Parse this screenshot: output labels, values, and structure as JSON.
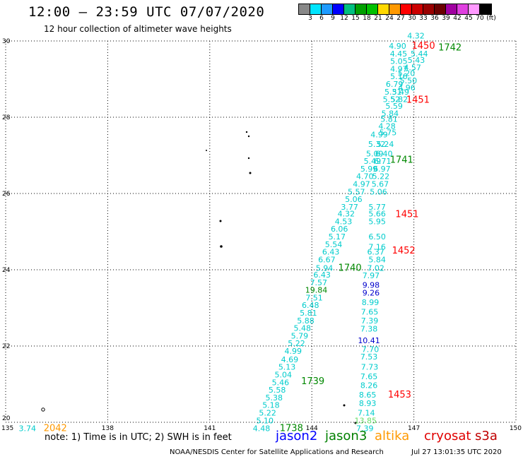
{
  "header": {
    "title": "12:00 – 23:59 UTC 07/07/2020",
    "subtitle": "12 hour collection of altimeter wave heights"
  },
  "color_scale": {
    "colors": [
      "#888888",
      "#00e5ff",
      "#1e9bff",
      "#0000ff",
      "#00c080",
      "#00a000",
      "#00c000",
      "#ffd800",
      "#ff9900",
      "#ff0000",
      "#cc0000",
      "#990000",
      "#6a0000",
      "#a000a0",
      "#e040e0",
      "#ff99ff",
      "#000000"
    ],
    "labels": [
      "3",
      "6",
      "9",
      "12",
      "15",
      "18",
      "21",
      "24",
      "27",
      "30",
      "33",
      "36",
      "39",
      "42",
      "45",
      "70",
      "(ft)"
    ]
  },
  "footer": {
    "note": "note:  1) Time is in UTC;  2) SWH is in feet",
    "legend": [
      {
        "name": "jason2",
        "color": "#0000ff"
      },
      {
        "name": "jason3",
        "color": "#008000"
      },
      {
        "name": "altika",
        "color": "#ff9900"
      },
      {
        "name": "cryosat",
        "color": "#e00000"
      },
      {
        "name": "s3a",
        "color": "#c00000"
      }
    ],
    "credit": "NOAA/NESDIS Center for Satellite Applications and Research",
    "timestamp": "Jul 27 13:01:35 UTC 2020"
  },
  "chart_data": {
    "type": "scatter",
    "xlim": [
      135,
      150
    ],
    "ylim": [
      20,
      30
    ],
    "x_ticks": [
      "135",
      "138",
      "141",
      "144",
      "147",
      "150"
    ],
    "y_ticks": [
      "20",
      "22",
      "24",
      "26",
      "28",
      "30"
    ],
    "grid": true,
    "labels": [
      {
        "x": 147.06,
        "y": 30.14,
        "text": "4.32",
        "color": "#00cccc"
      },
      {
        "x": 146.52,
        "y": 29.87,
        "text": "4.90",
        "color": "#00cccc"
      },
      {
        "x": 147.28,
        "y": 29.87,
        "text": "1450",
        "color": "#ff0000"
      },
      {
        "x": 148.06,
        "y": 29.82,
        "text": "1742",
        "color": "#008800"
      },
      {
        "x": 146.55,
        "y": 29.67,
        "text": "4.45",
        "color": "#00cccc"
      },
      {
        "x": 147.16,
        "y": 29.67,
        "text": "5.44",
        "color": "#00cccc"
      },
      {
        "x": 146.56,
        "y": 29.47,
        "text": "5.05",
        "color": "#00cccc"
      },
      {
        "x": 147.07,
        "y": 29.5,
        "text": "5.43",
        "color": "#00cccc"
      },
      {
        "x": 146.56,
        "y": 29.27,
        "text": "4.97",
        "color": "#00cccc"
      },
      {
        "x": 146.96,
        "y": 29.31,
        "text": "4.57",
        "color": "#00cccc"
      },
      {
        "x": 146.78,
        "y": 29.16,
        "text": "5.20",
        "color": "#00cccc"
      },
      {
        "x": 146.56,
        "y": 29.07,
        "text": "5.16",
        "color": "#00cccc"
      },
      {
        "x": 146.84,
        "y": 28.96,
        "text": "5.50",
        "color": "#00cccc"
      },
      {
        "x": 146.43,
        "y": 28.87,
        "text": "6.79",
        "color": "#00cccc"
      },
      {
        "x": 146.79,
        "y": 28.78,
        "text": "4.96",
        "color": "#00cccc"
      },
      {
        "x": 146.39,
        "y": 28.67,
        "text": "5.31",
        "color": "#00cccc"
      },
      {
        "x": 146.61,
        "y": 28.67,
        "text": "5.49",
        "color": "#00cccc"
      },
      {
        "x": 146.34,
        "y": 28.47,
        "text": "5.52",
        "color": "#00cccc"
      },
      {
        "x": 146.57,
        "y": 28.47,
        "text": "5.82",
        "color": "#00cccc"
      },
      {
        "x": 147.12,
        "y": 28.45,
        "text": "1451",
        "color": "#ff0000"
      },
      {
        "x": 146.42,
        "y": 28.3,
        "text": "5.59",
        "color": "#00cccc"
      },
      {
        "x": 146.3,
        "y": 28.1,
        "text": "5.84",
        "color": "#00cccc"
      },
      {
        "x": 146.27,
        "y": 27.95,
        "text": "5.81",
        "color": "#00cccc"
      },
      {
        "x": 146.21,
        "y": 27.77,
        "text": "4.28",
        "color": "#00cccc"
      },
      {
        "x": 146.24,
        "y": 27.6,
        "text": "5.75",
        "color": "#00cccc"
      },
      {
        "x": 145.98,
        "y": 27.55,
        "text": "4.99",
        "color": "#00cccc"
      },
      {
        "x": 145.91,
        "y": 27.3,
        "text": "5.32",
        "color": "#00cccc"
      },
      {
        "x": 146.16,
        "y": 27.3,
        "text": "5.24",
        "color": "#00cccc"
      },
      {
        "x": 145.85,
        "y": 27.05,
        "text": "5.09",
        "color": "#00cccc"
      },
      {
        "x": 146.12,
        "y": 27.05,
        "text": "6.40",
        "color": "#00cccc"
      },
      {
        "x": 145.78,
        "y": 26.85,
        "text": "5.49",
        "color": "#00cccc"
      },
      {
        "x": 146.08,
        "y": 26.85,
        "text": "6.71",
        "color": "#00cccc"
      },
      {
        "x": 146.64,
        "y": 26.88,
        "text": "1741",
        "color": "#008800"
      },
      {
        "x": 145.68,
        "y": 26.65,
        "text": "5.99",
        "color": "#00cccc"
      },
      {
        "x": 146.06,
        "y": 26.65,
        "text": "6.97",
        "color": "#00cccc"
      },
      {
        "x": 145.56,
        "y": 26.45,
        "text": "4.70",
        "color": "#00cccc"
      },
      {
        "x": 146.03,
        "y": 26.45,
        "text": "5.22",
        "color": "#00cccc"
      },
      {
        "x": 145.46,
        "y": 26.25,
        "text": "4.97",
        "color": "#00cccc"
      },
      {
        "x": 146.01,
        "y": 26.25,
        "text": "5.67",
        "color": "#00cccc"
      },
      {
        "x": 145.31,
        "y": 26.05,
        "text": "5.57",
        "color": "#00cccc"
      },
      {
        "x": 145.96,
        "y": 26.05,
        "text": "5.06",
        "color": "#00cccc"
      },
      {
        "x": 145.23,
        "y": 25.85,
        "text": "5.06",
        "color": "#00cccc"
      },
      {
        "x": 145.11,
        "y": 25.65,
        "text": "3.77",
        "color": "#00cccc"
      },
      {
        "x": 145.92,
        "y": 25.65,
        "text": "5.77",
        "color": "#00cccc"
      },
      {
        "x": 145.01,
        "y": 25.47,
        "text": "4.32",
        "color": "#00cccc"
      },
      {
        "x": 145.92,
        "y": 25.47,
        "text": "5.66",
        "color": "#00cccc"
      },
      {
        "x": 146.8,
        "y": 25.45,
        "text": "1451",
        "color": "#ff0000"
      },
      {
        "x": 144.93,
        "y": 25.27,
        "text": "4.53",
        "color": "#00cccc"
      },
      {
        "x": 145.92,
        "y": 25.27,
        "text": "5.95",
        "color": "#00cccc"
      },
      {
        "x": 144.81,
        "y": 25.07,
        "text": "6.06",
        "color": "#00cccc"
      },
      {
        "x": 145.92,
        "y": 24.87,
        "text": "6.50",
        "color": "#00cccc"
      },
      {
        "x": 144.74,
        "y": 24.87,
        "text": "5.17",
        "color": "#00cccc"
      },
      {
        "x": 144.64,
        "y": 24.67,
        "text": "5.54",
        "color": "#00cccc"
      },
      {
        "x": 145.92,
        "y": 24.6,
        "text": "7.16",
        "color": "#00cccc"
      },
      {
        "x": 144.56,
        "y": 24.47,
        "text": "6.43",
        "color": "#00cccc"
      },
      {
        "x": 145.88,
        "y": 24.47,
        "text": "6.37",
        "color": "#00cccc"
      },
      {
        "x": 146.7,
        "y": 24.5,
        "text": "1452",
        "color": "#ff0000"
      },
      {
        "x": 144.44,
        "y": 24.27,
        "text": "6.67",
        "color": "#00cccc"
      },
      {
        "x": 145.92,
        "y": 24.27,
        "text": "5.84",
        "color": "#00cccc"
      },
      {
        "x": 144.37,
        "y": 24.05,
        "text": "5.94",
        "color": "#00cccc"
      },
      {
        "x": 145.12,
        "y": 24.05,
        "text": "1740",
        "color": "#008800"
      },
      {
        "x": 145.88,
        "y": 24.05,
        "text": "7.02",
        "color": "#00cccc"
      },
      {
        "x": 144.3,
        "y": 23.87,
        "text": "6.43",
        "color": "#00cccc"
      },
      {
        "x": 145.74,
        "y": 23.85,
        "text": "7.97",
        "color": "#00cccc"
      },
      {
        "x": 144.2,
        "y": 23.67,
        "text": "7.57",
        "color": "#00cccc"
      },
      {
        "x": 145.74,
        "y": 23.6,
        "text": "9.98",
        "color": "#0000cc"
      },
      {
        "x": 144.13,
        "y": 23.47,
        "text": "19.84",
        "color": "#008800"
      },
      {
        "x": 145.74,
        "y": 23.4,
        "text": "9.26",
        "color": "#0000cc"
      },
      {
        "x": 144.07,
        "y": 23.27,
        "text": "7.51",
        "color": "#00cccc"
      },
      {
        "x": 145.72,
        "y": 23.15,
        "text": "8.99",
        "color": "#00cccc"
      },
      {
        "x": 143.96,
        "y": 23.07,
        "text": "6.48",
        "color": "#00cccc"
      },
      {
        "x": 145.7,
        "y": 22.9,
        "text": "7.65",
        "color": "#00cccc"
      },
      {
        "x": 143.9,
        "y": 22.87,
        "text": "5.81",
        "color": "#00cccc"
      },
      {
        "x": 143.82,
        "y": 22.67,
        "text": "5.88",
        "color": "#00cccc"
      },
      {
        "x": 145.7,
        "y": 22.67,
        "text": "7.39",
        "color": "#00cccc"
      },
      {
        "x": 143.72,
        "y": 22.47,
        "text": "5.48",
        "color": "#00cccc"
      },
      {
        "x": 145.68,
        "y": 22.45,
        "text": "7.38",
        "color": "#00cccc"
      },
      {
        "x": 143.64,
        "y": 22.27,
        "text": "5.79",
        "color": "#00cccc"
      },
      {
        "x": 145.68,
        "y": 22.15,
        "text": "10.41",
        "color": "#0000cc"
      },
      {
        "x": 143.55,
        "y": 22.07,
        "text": "5.22",
        "color": "#00cccc"
      },
      {
        "x": 143.45,
        "y": 21.87,
        "text": "4.99",
        "color": "#00cccc"
      },
      {
        "x": 145.72,
        "y": 21.92,
        "text": "7.70",
        "color": "#00cccc"
      },
      {
        "x": 143.35,
        "y": 21.65,
        "text": "4.69",
        "color": "#00cccc"
      },
      {
        "x": 145.68,
        "y": 21.72,
        "text": "7.53",
        "color": "#00cccc"
      },
      {
        "x": 143.27,
        "y": 21.45,
        "text": "5.13",
        "color": "#00cccc"
      },
      {
        "x": 145.7,
        "y": 21.45,
        "text": "7.73",
        "color": "#00cccc"
      },
      {
        "x": 143.16,
        "y": 21.25,
        "text": "5.04",
        "color": "#00cccc"
      },
      {
        "x": 145.68,
        "y": 21.2,
        "text": "7.65",
        "color": "#00cccc"
      },
      {
        "x": 143.08,
        "y": 21.05,
        "text": "5.46",
        "color": "#00cccc"
      },
      {
        "x": 144.03,
        "y": 21.07,
        "text": "1739",
        "color": "#008800"
      },
      {
        "x": 145.68,
        "y": 20.97,
        "text": "8.26",
        "color": "#00cccc"
      },
      {
        "x": 142.98,
        "y": 20.85,
        "text": "5.58",
        "color": "#00cccc"
      },
      {
        "x": 142.89,
        "y": 20.65,
        "text": "5.38",
        "color": "#00cccc"
      },
      {
        "x": 145.64,
        "y": 20.72,
        "text": "8.65",
        "color": "#00cccc"
      },
      {
        "x": 146.58,
        "y": 20.72,
        "text": "1453",
        "color": "#ff0000"
      },
      {
        "x": 142.8,
        "y": 20.45,
        "text": "5.18",
        "color": "#00cccc"
      },
      {
        "x": 145.64,
        "y": 20.5,
        "text": "8.93",
        "color": "#00cccc"
      },
      {
        "x": 142.7,
        "y": 20.25,
        "text": "5.22",
        "color": "#00cccc"
      },
      {
        "x": 145.6,
        "y": 20.25,
        "text": "7.14",
        "color": "#00cccc"
      },
      {
        "x": 142.62,
        "y": 20.05,
        "text": "5.10",
        "color": "#00cccc"
      },
      {
        "x": 145.58,
        "y": 20.05,
        "text": "13.85",
        "color": "#66dd66"
      },
      {
        "x": 142.52,
        "y": 19.84,
        "text": "4.48",
        "color": "#00cccc"
      },
      {
        "x": 143.4,
        "y": 19.84,
        "text": "1738",
        "color": "#008800"
      },
      {
        "x": 145.56,
        "y": 19.84,
        "text": "7.39",
        "color": "#00cccc"
      },
      {
        "x": 135.64,
        "y": 19.84,
        "text": "3.74",
        "color": "#00cccc"
      },
      {
        "x": 136.46,
        "y": 19.84,
        "text": "2042",
        "color": "#ff9900"
      }
    ]
  }
}
